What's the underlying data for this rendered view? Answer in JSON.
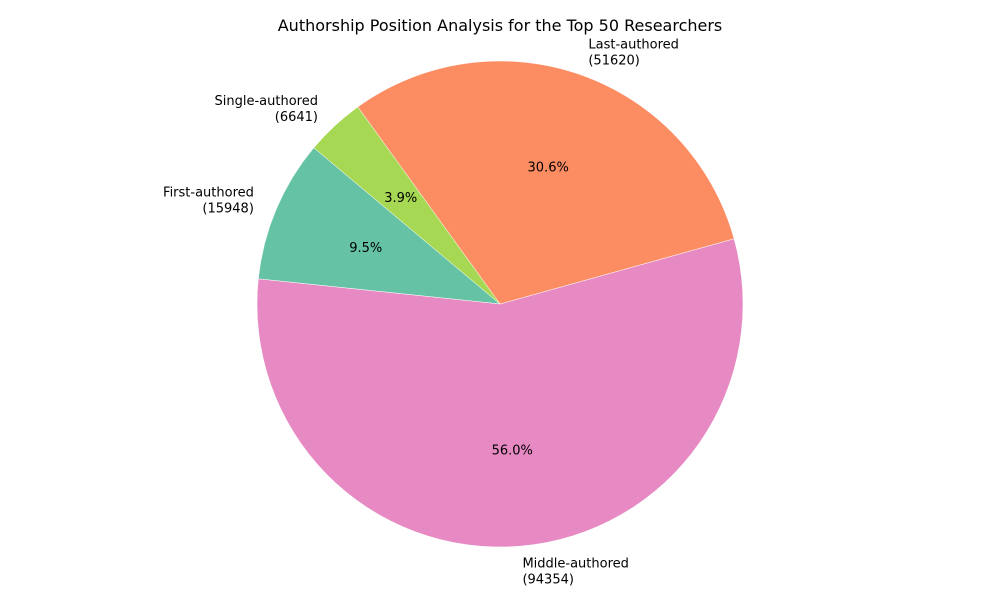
{
  "chart_data": {
    "type": "pie",
    "title": "Authorship Position Analysis for the Top 50 Researchers",
    "slices": [
      {
        "label": "First-authored",
        "count": "(15948)",
        "value": 15948,
        "percent_label": "9.5%",
        "color": "#66c2a5"
      },
      {
        "label": "Middle-authored",
        "count": "(94354)",
        "value": 94354,
        "percent_label": "56.0%",
        "color": "#e78ac3"
      },
      {
        "label": "Last-authored",
        "count": "(51620)",
        "value": 51620,
        "percent_label": "30.6%",
        "color": "#fc8d62"
      },
      {
        "label": "Single-authored",
        "count": "(6641)",
        "value": 6641,
        "percent_label": "3.9%",
        "color": "#a6d854"
      }
    ],
    "start_angle_deg": 140,
    "direction": "counterclockwise",
    "legend": "none"
  }
}
